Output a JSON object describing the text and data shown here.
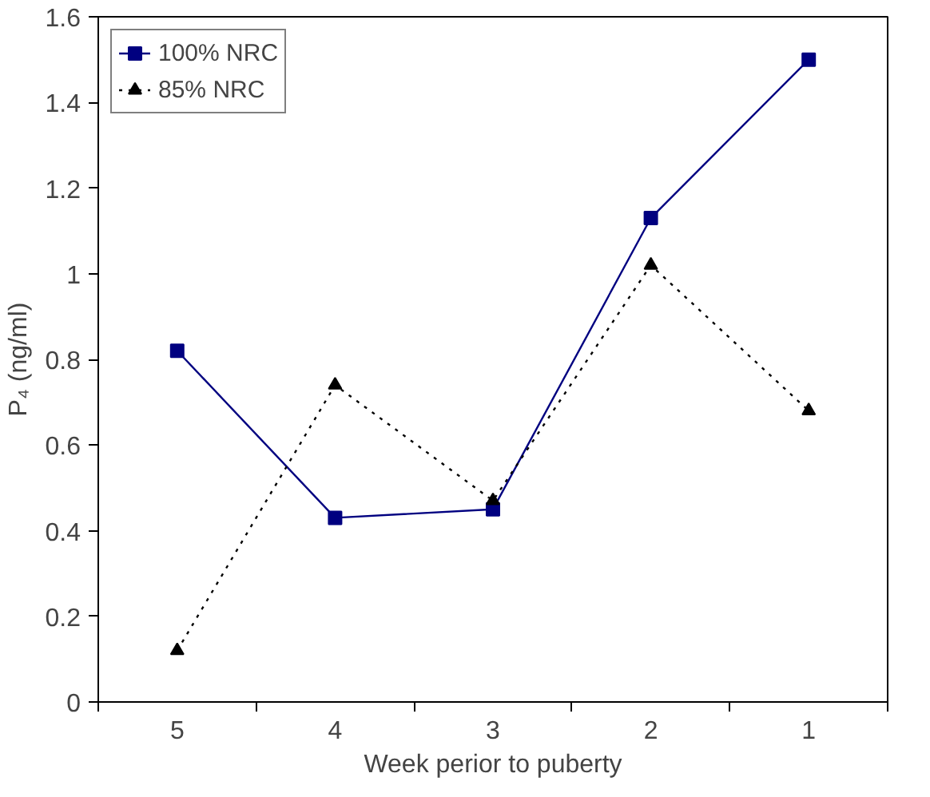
{
  "chart_data": {
    "type": "line",
    "xlabel": "Week perior to puberty",
    "ylabel": "P₄ (ng/ml)",
    "categories": [
      "5",
      "4",
      "3",
      "2",
      "1"
    ],
    "series": [
      {
        "name": "100% NRC",
        "color": "#000080",
        "values": [
          0.82,
          0.43,
          0.45,
          1.13,
          1.5
        ],
        "marker": "square",
        "line_style": "solid"
      },
      {
        "name": "85% NRC",
        "color": "#000000",
        "values": [
          0.12,
          0.74,
          0.47,
          1.02,
          0.68
        ],
        "marker": "triangle",
        "line_style": "dotted"
      }
    ],
    "ylim": [
      0,
      1.6
    ],
    "yticks": [
      0,
      0.2,
      0.4,
      0.6,
      0.8,
      1,
      1.2,
      1.4,
      1.6
    ],
    "grid": false,
    "legend": "top left"
  }
}
